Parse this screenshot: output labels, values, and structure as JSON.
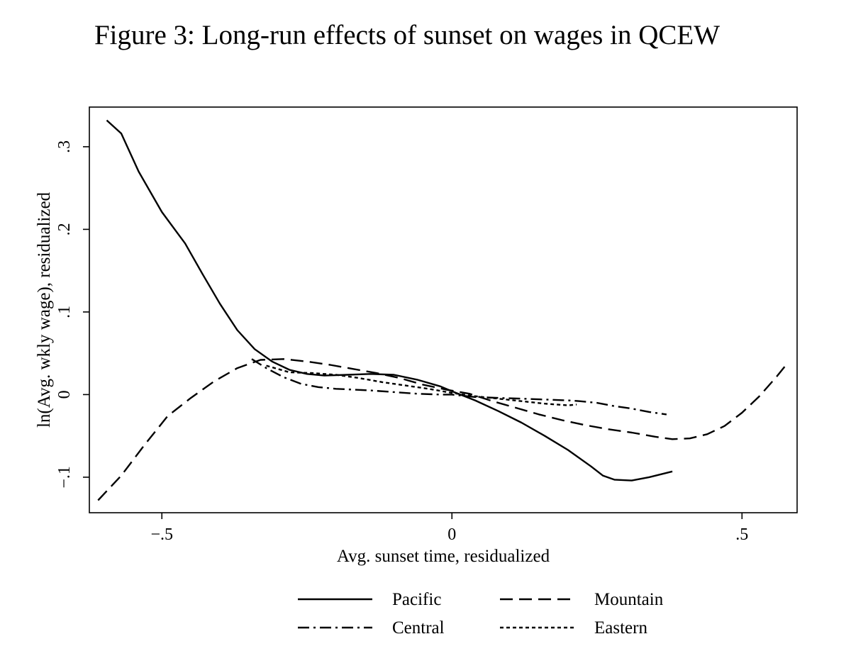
{
  "chart_data": {
    "type": "line",
    "title": "Figure 3: Long-run effects of sunset on wages in QCEW",
    "xlabel": "Avg. sunset time, residualized",
    "ylabel": "ln(Avg. wkly wage), residualized",
    "xlim": [
      -0.625,
      0.595
    ],
    "ylim": [
      -0.143,
      0.348
    ],
    "x_ticks": [
      {
        "value": -0.5,
        "label": "−.5"
      },
      {
        "value": 0,
        "label": "0"
      },
      {
        "value": 0.5,
        "label": ".5"
      }
    ],
    "y_ticks": [
      {
        "value": -0.1,
        "label": "−.1"
      },
      {
        "value": 0,
        "label": "0"
      },
      {
        "value": 0.1,
        "label": ".1"
      },
      {
        "value": 0.2,
        "label": ".2"
      },
      {
        "value": 0.3,
        "label": ".3"
      }
    ],
    "grid": false,
    "legend_position": "bottom",
    "series": [
      {
        "name": "Pacific",
        "style": "solid",
        "x": [
          -0.595,
          -0.57,
          -0.54,
          -0.5,
          -0.46,
          -0.43,
          -0.4,
          -0.37,
          -0.34,
          -0.31,
          -0.28,
          -0.25,
          -0.22,
          -0.18,
          -0.14,
          -0.1,
          -0.06,
          -0.02,
          0,
          0.04,
          0.08,
          0.12,
          0.16,
          0.2,
          0.24,
          0.26,
          0.28,
          0.31,
          0.34,
          0.38
        ],
        "y": [
          0.332,
          0.316,
          0.27,
          0.221,
          0.183,
          0.146,
          0.11,
          0.078,
          0.055,
          0.04,
          0.03,
          0.025,
          0.023,
          0.024,
          0.025,
          0.024,
          0.018,
          0.01,
          0.004,
          -0.007,
          -0.02,
          -0.034,
          -0.05,
          -0.067,
          -0.087,
          -0.098,
          -0.103,
          -0.104,
          -0.1,
          -0.093
        ]
      },
      {
        "name": "Mountain",
        "style": "dashed",
        "x": [
          -0.61,
          -0.57,
          -0.53,
          -0.49,
          -0.45,
          -0.41,
          -0.37,
          -0.33,
          -0.29,
          -0.25,
          -0.21,
          -0.17,
          -0.13,
          -0.09,
          -0.05,
          -0.01,
          0.03,
          0.07,
          0.11,
          0.15,
          0.19,
          0.23,
          0.27,
          0.31,
          0.35,
          0.38,
          0.41,
          0.44,
          0.47,
          0.5,
          0.53,
          0.56,
          0.575
        ],
        "y": [
          -0.128,
          -0.098,
          -0.061,
          -0.026,
          -0.004,
          0.016,
          0.032,
          0.042,
          0.043,
          0.04,
          0.036,
          0.031,
          0.026,
          0.02,
          0.012,
          0.006,
          0.001,
          -0.008,
          -0.016,
          -0.024,
          -0.031,
          -0.037,
          -0.042,
          -0.046,
          -0.051,
          -0.054,
          -0.053,
          -0.048,
          -0.038,
          -0.022,
          -0.002,
          0.022,
          0.035
        ]
      },
      {
        "name": "Central",
        "style": "dash-dot",
        "x": [
          -0.345,
          -0.32,
          -0.29,
          -0.26,
          -0.23,
          -0.2,
          -0.17,
          -0.14,
          -0.1,
          -0.06,
          -0.02,
          0,
          0.04,
          0.08,
          0.12,
          0.16,
          0.2,
          0.22,
          0.25,
          0.28,
          0.31,
          0.34,
          0.37
        ],
        "y": [
          0.043,
          0.032,
          0.021,
          0.013,
          0.009,
          0.007,
          0.006,
          0.005,
          0.003,
          0.001,
          0.0,
          0.0,
          -0.003,
          -0.004,
          -0.005,
          -0.006,
          -0.007,
          -0.008,
          -0.01,
          -0.014,
          -0.017,
          -0.021,
          -0.024
        ]
      },
      {
        "name": "Eastern",
        "style": "dotted",
        "x": [
          -0.32,
          -0.28,
          -0.24,
          -0.2,
          -0.16,
          -0.12,
          -0.08,
          -0.04,
          0,
          0.04,
          0.08,
          0.12,
          0.16,
          0.2,
          0.215
        ],
        "y": [
          0.035,
          0.027,
          0.026,
          0.024,
          0.02,
          0.015,
          0.011,
          0.007,
          0.002,
          -0.002,
          -0.005,
          -0.008,
          -0.011,
          -0.013,
          -0.012
        ]
      }
    ]
  }
}
